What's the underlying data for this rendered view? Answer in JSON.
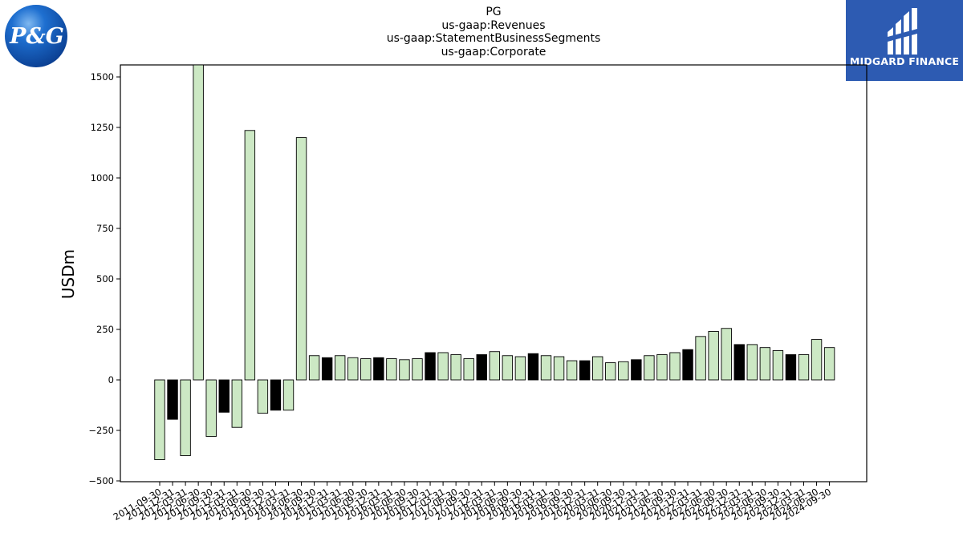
{
  "logos": {
    "left": {
      "text": "P&G",
      "colors": {
        "outer": "#0a3d8f",
        "inner": "#1e6fd0",
        "highlight": "#7fb8f0"
      }
    },
    "right": {
      "text": "MIDGARD FINANCE",
      "background": "#2d5bb2"
    }
  },
  "title_lines": [
    "PG",
    "us-gaap:Revenues",
    "us-gaap:StatementBusinessSegments",
    "us-gaap:Corporate"
  ],
  "chart_data": {
    "type": "bar",
    "title": "PG us-gaap:Revenues us-gaap:StatementBusinessSegments us-gaap:Corporate",
    "ylabel": "USDm",
    "xlabel": "",
    "ylim": [
      -500,
      1560
    ],
    "yticks": [
      -500,
      -250,
      0,
      250,
      500,
      750,
      1000,
      1250,
      1500
    ],
    "ytick_labels": [
      "−500",
      "−250",
      "0",
      "250",
      "500",
      "750",
      "1000",
      "1250",
      "1500"
    ],
    "colors": {
      "default": "#cce8c4",
      "highlight": "#000000",
      "edge": "#000000"
    },
    "categories": [
      "2011-09-30",
      "2011-12-31",
      "2012-03-31",
      "2012-06-30",
      "2012-09-30",
      "2012-12-31",
      "2013-03-31",
      "2013-06-30",
      "2013-09-30",
      "2013-12-31",
      "2014-03-31",
      "2014-06-30",
      "2014-09-30",
      "2014-12-31",
      "2015-03-31",
      "2015-06-30",
      "2015-09-30",
      "2015-12-31",
      "2016-03-31",
      "2016-06-30",
      "2016-09-30",
      "2016-12-31",
      "2017-03-31",
      "2017-06-30",
      "2017-09-30",
      "2017-12-31",
      "2018-03-31",
      "2018-06-30",
      "2018-09-30",
      "2018-12-31",
      "2019-03-31",
      "2019-06-30",
      "2019-09-30",
      "2019-12-31",
      "2020-03-31",
      "2020-06-30",
      "2020-09-30",
      "2020-12-31",
      "2021-03-31",
      "2021-06-30",
      "2021-09-30",
      "2021-12-31",
      "2022-03-31",
      "2022-06-30",
      "2022-09-30",
      "2022-12-31",
      "2023-03-31",
      "2023-06-30",
      "2023-09-30",
      "2023-12-31",
      "2024-03-31",
      "2024-06-30",
      "2024-09-30"
    ],
    "values": [
      -395,
      -195,
      -375,
      1560,
      -280,
      -160,
      -235,
      1235,
      -165,
      -150,
      -150,
      1200,
      120,
      110,
      120,
      110,
      105,
      110,
      105,
      100,
      105,
      135,
      135,
      125,
      105,
      125,
      140,
      120,
      115,
      130,
      120,
      115,
      95,
      95,
      115,
      85,
      90,
      100,
      120,
      125,
      135,
      150,
      215,
      240,
      255,
      175,
      175,
      160,
      145,
      125,
      125,
      200,
      160
    ],
    "highlight_flags": [
      false,
      true,
      false,
      false,
      false,
      true,
      false,
      false,
      false,
      true,
      false,
      false,
      false,
      true,
      false,
      false,
      false,
      true,
      false,
      false,
      false,
      true,
      false,
      false,
      false,
      true,
      false,
      false,
      false,
      true,
      false,
      false,
      false,
      true,
      false,
      false,
      false,
      true,
      false,
      false,
      false,
      true,
      false,
      false,
      false,
      true,
      false,
      false,
      false,
      true,
      false,
      false,
      false
    ]
  }
}
